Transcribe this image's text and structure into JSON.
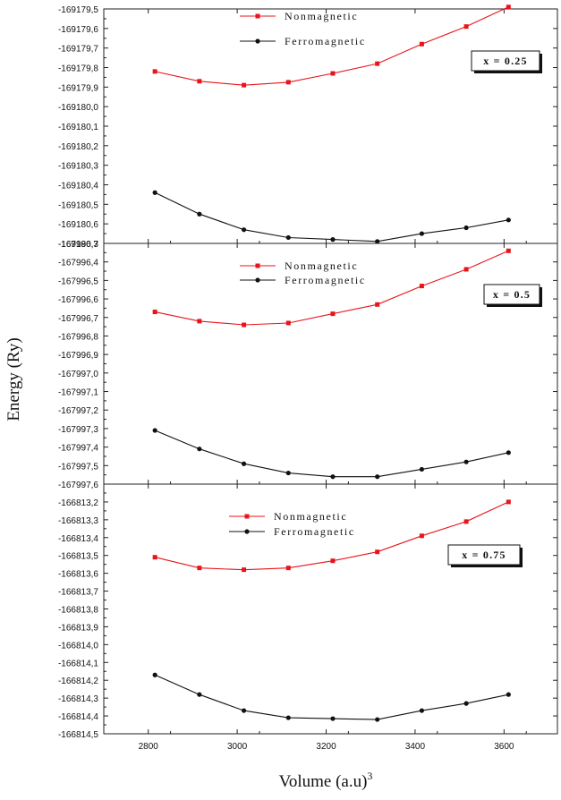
{
  "chart_data": {
    "type": "line",
    "ylabel": "Energy (Ry)",
    "xlabel": "Volume (a.u)",
    "xlabel_sup": "3",
    "x_ticks": [
      2800,
      3000,
      3200,
      3400,
      3600
    ],
    "xlim": [
      2700,
      3720
    ],
    "colors": {
      "Nonmagnetic": "#e8141b",
      "Ferromagnetic": "#111111"
    },
    "panels": [
      {
        "label": "x = 0.25",
        "ylim": [
          -169180.7,
          -169179.5
        ],
        "y_ticks": [
          "-169179,5",
          "-169179,6",
          "-169179,7",
          "-169179,8",
          "-169179,9",
          "-169180,0",
          "-169180,1",
          "-169180,2",
          "-169180,3",
          "-169180,4",
          "-169180,5",
          "-169180,6",
          "-169180,7"
        ],
        "series": [
          {
            "name": "Nonmagnetic",
            "x": [
              2815,
              2915,
              3015,
              3115,
              3215,
              3315,
              3415,
              3515,
              3610
            ],
            "values": [
              -169179.82,
              -169179.87,
              -169179.89,
              -169179.875,
              -169179.83,
              -169179.78,
              -169179.68,
              -169179.59,
              -169179.49
            ]
          },
          {
            "name": "Ferromagnetic",
            "x": [
              2815,
              2915,
              3015,
              3115,
              3215,
              3315,
              3415,
              3515,
              3610
            ],
            "values": [
              -169180.44,
              -169180.55,
              -169180.63,
              -169180.67,
              -169180.68,
              -169180.69,
              -169180.65,
              -169180.62,
              -169180.58
            ]
          }
        ]
      },
      {
        "label": "x = 0.5",
        "ylim": [
          -167997.6,
          -167996.3
        ],
        "y_ticks": [
          "-167996,3",
          "-167996,4",
          "-167996,5",
          "-167996,6",
          "-167996,7",
          "-167996,8",
          "-167996,9",
          "-167997,0",
          "-167997,1",
          "-167997,2",
          "-167997,3",
          "-167997,4",
          "-167997,5",
          "-167997,6"
        ],
        "series": [
          {
            "name": "Nonmagnetic",
            "x": [
              2815,
              2915,
              3015,
              3115,
              3215,
              3315,
              3415,
              3515,
              3610
            ],
            "values": [
              -167996.67,
              -167996.72,
              -167996.74,
              -167996.73,
              -167996.68,
              -167996.63,
              -167996.53,
              -167996.44,
              -167996.34
            ]
          },
          {
            "name": "Ferromagnetic",
            "x": [
              2815,
              2915,
              3015,
              3115,
              3215,
              3315,
              3415,
              3515,
              3610
            ],
            "values": [
              -167997.31,
              -167997.41,
              -167997.49,
              -167997.54,
              -167997.56,
              -167997.56,
              -167997.52,
              -167997.48,
              -167997.43
            ]
          }
        ]
      },
      {
        "label": "x = 0.75",
        "ylim": [
          -166814.5,
          -166813.1
        ],
        "y_ticks": [
          "",
          "-166813,2",
          "-166813,3",
          "-166813,4",
          "-166813,5",
          "-166813,6",
          "-166813,7",
          "-166813,8",
          "-166813,9",
          "-166814,0",
          "-166814,1",
          "-166814,2",
          "-166814,3",
          "-166814,4",
          "-166814,5"
        ],
        "series": [
          {
            "name": "Nonmagnetic",
            "x": [
              2815,
              2915,
              3015,
              3115,
              3215,
              3315,
              3415,
              3515,
              3610
            ],
            "values": [
              -166813.51,
              -166813.57,
              -166813.58,
              -166813.57,
              -166813.53,
              -166813.48,
              -166813.39,
              -166813.31,
              -166813.2
            ]
          },
          {
            "name": "Ferromagnetic",
            "x": [
              2815,
              2915,
              3015,
              3115,
              3215,
              3315,
              3415,
              3515,
              3610
            ],
            "values": [
              -166814.17,
              -166814.28,
              -166814.37,
              -166814.41,
              -166814.415,
              -166814.42,
              -166814.37,
              -166814.33,
              -166814.28
            ]
          }
        ]
      }
    ]
  }
}
